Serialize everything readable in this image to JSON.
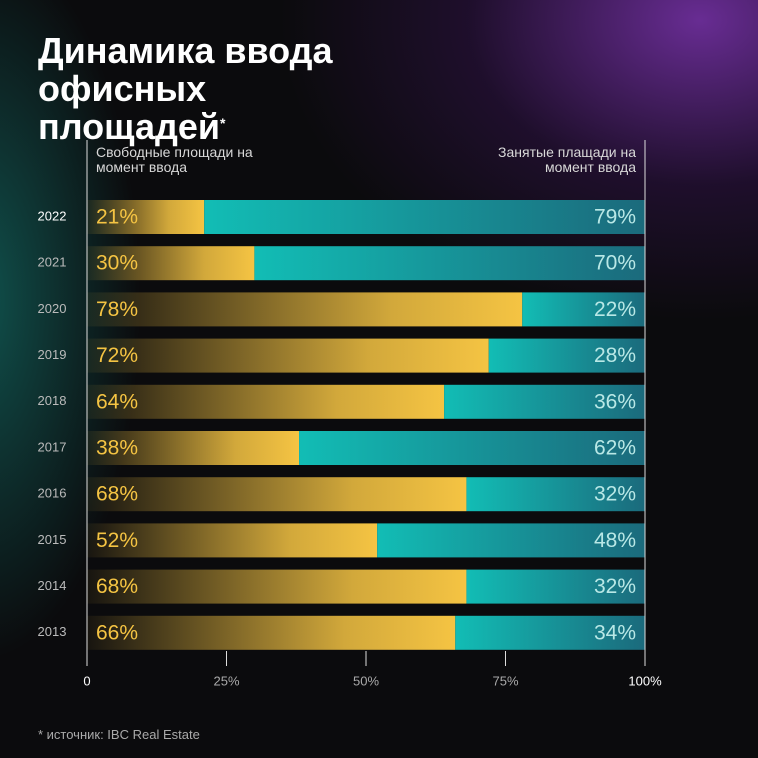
{
  "chart_data": {
    "type": "stacked-bar-horizontal",
    "title": "Динамика ввода офисных площадей",
    "title_mark": "*",
    "categories": [
      "2022",
      "2021",
      "2020",
      "2019",
      "2018",
      "2017",
      "2016",
      "2015",
      "2014",
      "2013"
    ],
    "series": [
      {
        "name": "Свободные площади на момент ввода",
        "color": "#f5c443",
        "values": [
          21,
          30,
          78,
          72,
          64,
          38,
          68,
          52,
          68,
          66
        ],
        "value_labels": [
          "21%",
          "30%",
          "78%",
          "72%",
          "64%",
          "38%",
          "68%",
          "52%",
          "68%",
          "66%"
        ]
      },
      {
        "name": "Занятые плащади на момент ввода",
        "color": "#12bdb5",
        "values": [
          79,
          70,
          22,
          28,
          36,
          62,
          32,
          48,
          32,
          34
        ],
        "value_labels": [
          "79%",
          "70%",
          "22%",
          "28%",
          "36%",
          "62%",
          "32%",
          "48%",
          "32%",
          "34%"
        ]
      }
    ],
    "xlim": [
      0,
      100
    ],
    "xticks": [
      0,
      {
        "value": 25,
        "label": "25%"
      },
      {
        "value": 50,
        "label": "50%"
      },
      {
        "value": 75,
        "label": "75%"
      },
      {
        "value": 100,
        "label": "100%"
      }
    ],
    "footnote": "* источник: IBC Real Estate"
  }
}
